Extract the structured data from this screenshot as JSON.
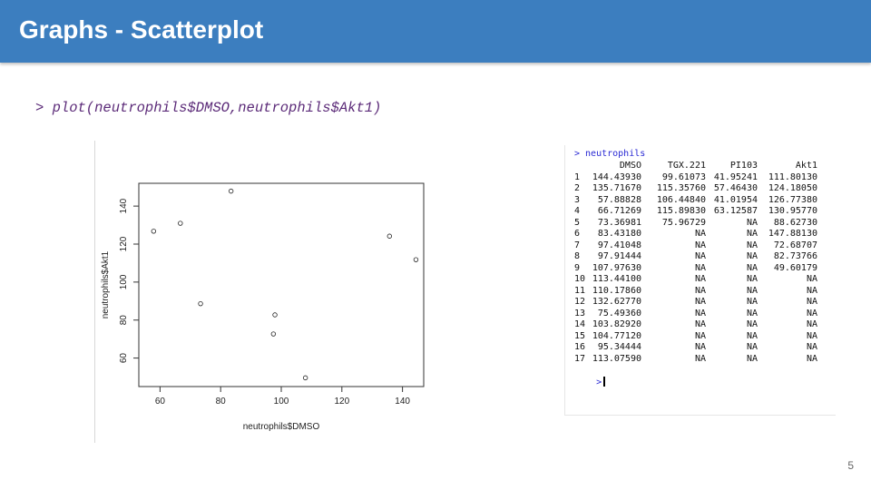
{
  "slide": {
    "title": "Graphs - Scatterplot",
    "command": "> plot(neutrophils$DMSO,neutrophils$Akt1)",
    "page_number": "5"
  },
  "chart_data": {
    "type": "scatter",
    "xlabel": "neutrophils$DMSO",
    "ylabel": "neutrophils$Akt1",
    "xlim": [
      53,
      147
    ],
    "ylim": [
      45,
      152
    ],
    "xticks": [
      60,
      80,
      100,
      120,
      140
    ],
    "yticks": [
      60,
      80,
      100,
      120,
      140
    ],
    "grid": false,
    "x": [
      144.4393,
      135.7167,
      57.88828,
      66.71269,
      73.36981,
      83.4318,
      97.41048,
      97.91444,
      107.9763
    ],
    "y": [
      111.8013,
      124.1805,
      126.7738,
      130.9577,
      88.6273,
      147.8813,
      72.68707,
      82.73766,
      49.60179
    ]
  },
  "console": {
    "command_line": "> neutrophils",
    "headers": [
      "DMSO",
      "TGX.221",
      "PI103",
      "Akt1"
    ],
    "rows": [
      [
        "1",
        "144.43930",
        "99.61073",
        "41.95241",
        "111.80130"
      ],
      [
        "2",
        "135.71670",
        "115.35760",
        "57.46430",
        "124.18050"
      ],
      [
        "3",
        "57.88828",
        "106.44840",
        "41.01954",
        "126.77380"
      ],
      [
        "4",
        "66.71269",
        "115.89830",
        "63.12587",
        "130.95770"
      ],
      [
        "5",
        "73.36981",
        "75.96729",
        "NA",
        "88.62730"
      ],
      [
        "6",
        "83.43180",
        "NA",
        "NA",
        "147.88130"
      ],
      [
        "7",
        "97.41048",
        "NA",
        "NA",
        "72.68707"
      ],
      [
        "8",
        "97.91444",
        "NA",
        "NA",
        "82.73766"
      ],
      [
        "9",
        "107.97630",
        "NA",
        "NA",
        "49.60179"
      ],
      [
        "10",
        "113.44100",
        "NA",
        "NA",
        "NA"
      ],
      [
        "11",
        "110.17860",
        "NA",
        "NA",
        "NA"
      ],
      [
        "12",
        "132.62770",
        "NA",
        "NA",
        "NA"
      ],
      [
        "13",
        "75.49360",
        "NA",
        "NA",
        "NA"
      ],
      [
        "14",
        "103.82920",
        "NA",
        "NA",
        "NA"
      ],
      [
        "15",
        "104.77120",
        "NA",
        "NA",
        "NA"
      ],
      [
        "16",
        "95.34444",
        "NA",
        "NA",
        "NA"
      ],
      [
        "17",
        "113.07590",
        "NA",
        "NA",
        "NA"
      ]
    ],
    "prompt": ">"
  },
  "colors": {
    "header_bg": "#3c7ebf",
    "command_text": "#5b2a78",
    "console_command": "#2a2ad4"
  }
}
